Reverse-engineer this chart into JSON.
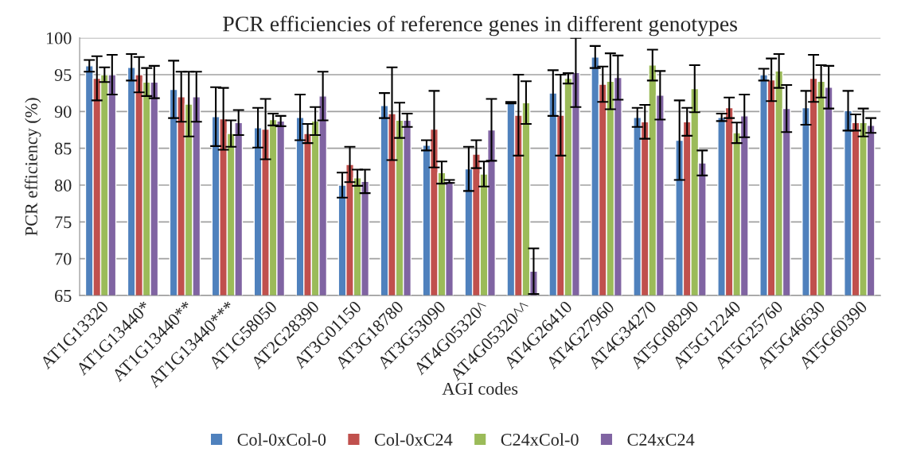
{
  "chart_data": {
    "type": "bar",
    "title": "PCR efficiencies of reference genes in different genotypes",
    "xlabel": "AGI codes",
    "ylabel": "PCR efficiency (%)",
    "categories": [
      "AT1G13320",
      "AT1G13440*",
      "AT1G13440**",
      "AT1G13440***",
      "AT1G58050",
      "AT2G28390",
      "AT3G01150",
      "AT3G18780",
      "AT3G53090",
      "AT4G05320^",
      "AT4G05320^^",
      "AT4G26410",
      "AT4G27960",
      "AT4G34270",
      "AT5G08290",
      "AT5G12240",
      "AT5G25760",
      "AT5G46630",
      "AT5G60390"
    ],
    "series": [
      {
        "name": "Col-0xCol-0",
        "color": "#4f81bd",
        "values": [
          96.2,
          96,
          93,
          89.3,
          87.8,
          89.2,
          80,
          90.8,
          85.4,
          82.2,
          91.2,
          92.5,
          97.4,
          89.2,
          86.1,
          89.2,
          95,
          90.5,
          90.1
        ],
        "errors": [
          0.8,
          1.8,
          3.9,
          4,
          2.7,
          3.1,
          1.7,
          1.7,
          0.7,
          3,
          0.1,
          3.1,
          1.5,
          1.3,
          5.4,
          0.5,
          0.8,
          2.3,
          2.7
        ]
      },
      {
        "name": "Col-0xC24",
        "color": "#c0504d",
        "values": [
          94.5,
          95,
          92,
          89,
          87.6,
          87,
          82.8,
          89.7,
          87.6,
          84.2,
          89.5,
          89.5,
          93.7,
          88.6,
          88.6,
          90.5,
          94.3,
          94.5,
          88.5
        ],
        "errors": [
          3,
          2.4,
          3.4,
          4.2,
          4.1,
          1.3,
          2.4,
          6.3,
          5.2,
          1.9,
          5.5,
          5.5,
          2.4,
          2.3,
          1.9,
          1.4,
          2.9,
          3.2,
          1.1
        ]
      },
      {
        "name": "C24xCol-0",
        "color": "#9bbb59",
        "values": [
          95,
          94,
          91,
          87,
          88.9,
          88.7,
          81,
          88.8,
          81.7,
          81.5,
          91.2,
          94.5,
          94.1,
          96.3,
          93.1,
          87.1,
          95.5,
          94.1,
          88.5
        ],
        "errors": [
          1,
          1.9,
          4.4,
          1.8,
          0.8,
          1.9,
          1.1,
          2.4,
          1.5,
          1.7,
          2.9,
          0.7,
          3.8,
          2.1,
          3.2,
          1.4,
          2.3,
          2.2,
          1.9
        ]
      },
      {
        "name": "C24xC24",
        "color": "#8064a2",
        "values": [
          95,
          94,
          92,
          88.5,
          88.7,
          92.1,
          80.5,
          88.8,
          80.5,
          87.5,
          68.3,
          95.3,
          94.6,
          92.2,
          83,
          89.4,
          90.4,
          93.3,
          88.1
        ],
        "errors": [
          2.7,
          2.2,
          3.4,
          1.7,
          0.7,
          3.3,
          1.6,
          0.9,
          0.2,
          4.2,
          3.1,
          4.7,
          3,
          3.3,
          1.7,
          2.9,
          3.2,
          2.9,
          1
        ]
      }
    ],
    "ylim": [
      65,
      100
    ],
    "yticks": [
      65,
      70,
      75,
      80,
      85,
      90,
      95,
      100
    ],
    "grid": "y",
    "legend": "bottom"
  }
}
